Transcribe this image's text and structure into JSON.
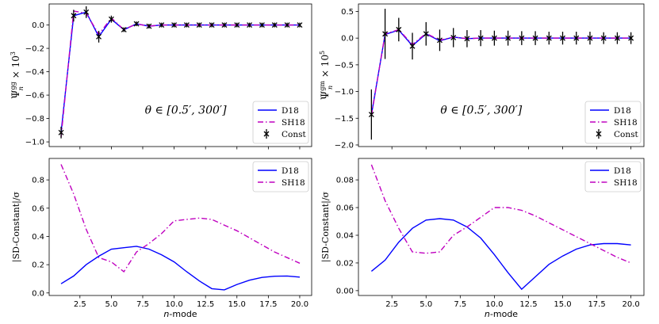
{
  "chart_data": [
    {
      "id": "top-left",
      "type": "line",
      "x": [
        1,
        2,
        3,
        4,
        5,
        6,
        7,
        8,
        9,
        10,
        11,
        12,
        13,
        14,
        15,
        16,
        17,
        18,
        19,
        20
      ],
      "series": [
        {
          "name": "D18",
          "style": "solid",
          "color": "#0000ff",
          "values": [
            -0.92,
            0.08,
            0.11,
            -0.1,
            0.05,
            -0.04,
            0.01,
            -0.01,
            0.0,
            0.0,
            0.0,
            0.0,
            0.0,
            0.0,
            0.0,
            0.0,
            0.0,
            0.0,
            0.0,
            0.0
          ]
        },
        {
          "name": "SH18",
          "style": "dashdot",
          "color": "#bf00bf",
          "values": [
            -0.96,
            0.12,
            0.1,
            -0.08,
            0.06,
            -0.04,
            0.01,
            -0.01,
            0.0,
            0.0,
            0.0,
            0.0,
            0.0,
            0.0,
            0.0,
            0.0,
            0.0,
            0.0,
            0.0,
            0.0
          ]
        },
        {
          "name": "Const",
          "style": "errorbar",
          "color": "#000000",
          "values": [
            -0.92,
            0.08,
            0.11,
            -0.1,
            0.05,
            -0.04,
            0.01,
            -0.01,
            0.0,
            0.0,
            0.0,
            0.0,
            0.0,
            0.0,
            0.0,
            0.0,
            0.0,
            0.0,
            0.0,
            0.0
          ],
          "errors": [
            0.05,
            0.05,
            0.05,
            0.05,
            0.03,
            0.02,
            0.02,
            0.02,
            0.02,
            0.02,
            0.02,
            0.02,
            0.02,
            0.02,
            0.02,
            0.02,
            0.02,
            0.02,
            0.02,
            0.02
          ]
        }
      ],
      "xlim": [
        0.05,
        20.95
      ],
      "ylim": [
        -1.04,
        0.18
      ],
      "yticks": [
        -1.0,
        -0.8,
        -0.6,
        -0.4,
        -0.2,
        0.0
      ],
      "ytick_labels": [
        "−1.0",
        "−0.8",
        "−0.6",
        "−0.4",
        "−0.2",
        "0.0"
      ],
      "xticks": [],
      "xtick_labels": [],
      "ylabel": "Ψ",
      "ylabel_sup": "gg",
      "ylabel_sub": "n",
      "ylabel_tail": " × 10",
      "ylabel_pow": "3",
      "xlabel": "",
      "annotation": "θ ∈ [0.5′, 300′]",
      "legend_position": "lower right",
      "legend_labels": [
        "D18",
        "SH18",
        "Const"
      ]
    },
    {
      "id": "top-right",
      "type": "line",
      "x": [
        1,
        2,
        3,
        4,
        5,
        6,
        7,
        8,
        9,
        10,
        11,
        12,
        13,
        14,
        15,
        16,
        17,
        18,
        19,
        20
      ],
      "series": [
        {
          "name": "D18",
          "style": "solid",
          "color": "#0000ff",
          "values": [
            -1.43,
            0.07,
            0.15,
            -0.14,
            0.08,
            -0.05,
            0.02,
            -0.01,
            0.0,
            0.0,
            0.0,
            0.0,
            0.0,
            0.0,
            0.0,
            0.0,
            0.0,
            0.0,
            0.0,
            0.0
          ]
        },
        {
          "name": "SH18",
          "style": "dashdot",
          "color": "#bf00bf",
          "values": [
            -1.45,
            0.08,
            0.16,
            -0.12,
            0.09,
            -0.04,
            0.02,
            -0.01,
            0.0,
            0.0,
            0.0,
            0.0,
            0.0,
            0.0,
            0.0,
            0.0,
            0.0,
            0.0,
            0.0,
            0.0
          ]
        },
        {
          "name": "Const",
          "style": "errorbar",
          "color": "#000000",
          "values": [
            -1.43,
            0.08,
            0.16,
            -0.15,
            0.08,
            -0.04,
            0.01,
            -0.01,
            0.0,
            0.0,
            0.0,
            0.0,
            0.0,
            0.0,
            0.0,
            0.0,
            0.0,
            0.0,
            0.0,
            0.0
          ],
          "errors": [
            0.47,
            0.47,
            0.22,
            0.25,
            0.22,
            0.2,
            0.18,
            0.16,
            0.15,
            0.14,
            0.14,
            0.13,
            0.13,
            0.12,
            0.12,
            0.12,
            0.12,
            0.11,
            0.11,
            0.11
          ]
        }
      ],
      "xlim": [
        0.05,
        20.95
      ],
      "ylim": [
        -2.03,
        0.64
      ],
      "yticks": [
        -2.0,
        -1.5,
        -1.0,
        -0.5,
        0.0,
        0.5
      ],
      "ytick_labels": [
        "−2.0",
        "−1.5",
        "−1.0",
        "−0.5",
        "0.0",
        "0.5"
      ],
      "xticks": [],
      "xtick_labels": [],
      "ylabel": "Ψ",
      "ylabel_sup": "gm",
      "ylabel_sub": "n",
      "ylabel_tail": " × 10",
      "ylabel_pow": "5",
      "xlabel": "",
      "annotation": "θ ∈ [0.5′, 300′]",
      "legend_position": "lower right",
      "legend_labels": [
        "D18",
        "SH18",
        "Const"
      ]
    },
    {
      "id": "bottom-left",
      "type": "line",
      "x": [
        1,
        2,
        3,
        4,
        5,
        6,
        7,
        8,
        9,
        10,
        11,
        12,
        13,
        14,
        15,
        16,
        17,
        18,
        19,
        20
      ],
      "series": [
        {
          "name": "D18",
          "style": "solid",
          "color": "#0000ff",
          "values": [
            0.065,
            0.12,
            0.2,
            0.26,
            0.31,
            0.32,
            0.33,
            0.31,
            0.27,
            0.22,
            0.15,
            0.085,
            0.03,
            0.022,
            0.06,
            0.09,
            0.11,
            0.118,
            0.12,
            0.112
          ]
        },
        {
          "name": "SH18",
          "style": "dashdot",
          "color": "#bf00bf",
          "values": [
            0.91,
            0.7,
            0.45,
            0.25,
            0.22,
            0.15,
            0.29,
            0.35,
            0.42,
            0.51,
            0.52,
            0.53,
            0.52,
            0.48,
            0.44,
            0.39,
            0.34,
            0.29,
            0.25,
            0.21
          ]
        }
      ],
      "xlim": [
        0.05,
        20.95
      ],
      "ylim": [
        -0.018,
        0.952
      ],
      "yticks": [
        0.0,
        0.2,
        0.4,
        0.6,
        0.8
      ],
      "ytick_labels": [
        "0.0",
        "0.2",
        "0.4",
        "0.6",
        "0.8"
      ],
      "xticks": [
        2.5,
        5.0,
        7.5,
        10.0,
        12.5,
        15.0,
        17.5,
        20.0
      ],
      "xtick_labels": [
        "2.5",
        "5.0",
        "7.5",
        "10.0",
        "12.5",
        "15.0",
        "17.5",
        "20.0"
      ],
      "ylabel": "|SD-Constant|/σ",
      "xlabel": "n-mode",
      "legend_position": "upper right",
      "legend_labels": [
        "D18",
        "SH18"
      ]
    },
    {
      "id": "bottom-right",
      "type": "line",
      "x": [
        1,
        2,
        3,
        4,
        5,
        6,
        7,
        8,
        9,
        10,
        11,
        12,
        13,
        14,
        15,
        16,
        17,
        18,
        19,
        20
      ],
      "series": [
        {
          "name": "D18",
          "style": "solid",
          "color": "#0000ff",
          "values": [
            0.014,
            0.022,
            0.035,
            0.045,
            0.051,
            0.052,
            0.051,
            0.046,
            0.038,
            0.026,
            0.013,
            0.001,
            0.01,
            0.019,
            0.025,
            0.03,
            0.033,
            0.034,
            0.034,
            0.033
          ]
        },
        {
          "name": "SH18",
          "style": "dashdot",
          "color": "#bf00bf",
          "values": [
            0.091,
            0.065,
            0.045,
            0.028,
            0.027,
            0.028,
            0.04,
            0.046,
            0.053,
            0.06,
            0.06,
            0.058,
            0.054,
            0.049,
            0.044,
            0.039,
            0.034,
            0.029,
            0.024,
            0.02
          ]
        }
      ],
      "xlim": [
        0.05,
        20.95
      ],
      "ylim": [
        -0.0035,
        0.0955
      ],
      "yticks": [
        0.0,
        0.02,
        0.04,
        0.06,
        0.08
      ],
      "ytick_labels": [
        "0.00",
        "0.02",
        "0.04",
        "0.06",
        "0.08"
      ],
      "xticks": [
        2.5,
        5.0,
        7.5,
        10.0,
        12.5,
        15.0,
        17.5,
        20.0
      ],
      "xtick_labels": [
        "2.5",
        "5.0",
        "7.5",
        "10.0",
        "12.5",
        "15.0",
        "17.5",
        "20.0"
      ],
      "ylabel": "|SD-Constant|/σ",
      "xlabel": "n-mode",
      "legend_position": "upper right",
      "legend_labels": [
        "D18",
        "SH18"
      ]
    }
  ]
}
